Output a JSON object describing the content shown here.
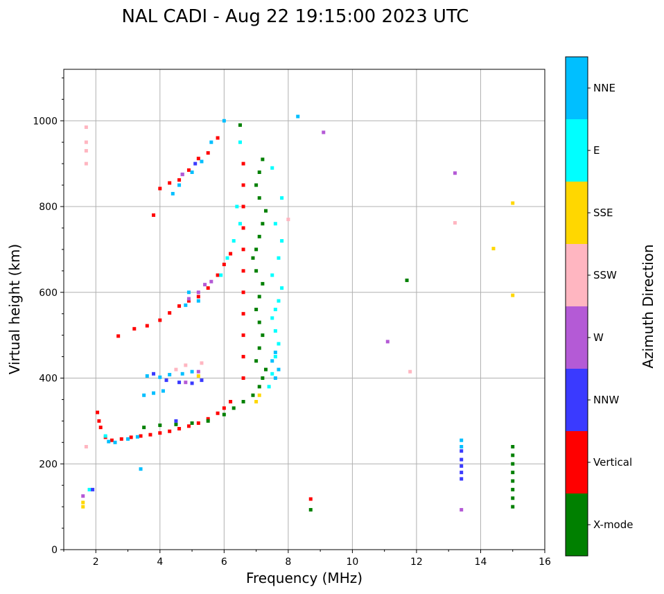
{
  "chart_data": {
    "type": "scatter",
    "title": "NAL CADI - Aug 22 19:15:00 2023 UTC",
    "xlabel": "Frequency (MHz)",
    "ylabel": "Virtual height (km)",
    "xlim": [
      1,
      16
    ],
    "ylim": [
      0,
      1120
    ],
    "xticks": [
      2,
      4,
      6,
      8,
      10,
      12,
      14,
      16
    ],
    "yticks": [
      0,
      200,
      400,
      600,
      800,
      1000
    ],
    "grid": true,
    "colorbar": {
      "label": "Azimuth Direction",
      "categories": [
        {
          "name": "X-mode",
          "color": "#008000"
        },
        {
          "name": "Vertical",
          "color": "#ff0000"
        },
        {
          "name": "NNW",
          "color": "#3a3aff"
        },
        {
          "name": "W",
          "color": "#b45ad6"
        },
        {
          "name": "SSW",
          "color": "#ffb6c1"
        },
        {
          "name": "SSE",
          "color": "#ffd700"
        },
        {
          "name": "E",
          "color": "#00ffff"
        },
        {
          "name": "NNE",
          "color": "#00bfff"
        }
      ]
    },
    "series": [
      {
        "name": "Vertical",
        "points": [
          [
            2.05,
            320
          ],
          [
            2.1,
            300
          ],
          [
            2.15,
            285
          ],
          [
            2.3,
            262
          ],
          [
            2.5,
            255
          ],
          [
            2.8,
            258
          ],
          [
            3.1,
            262
          ],
          [
            3.4,
            265
          ],
          [
            3.7,
            268
          ],
          [
            4.0,
            272
          ],
          [
            4.3,
            276
          ],
          [
            4.6,
            282
          ],
          [
            4.9,
            288
          ],
          [
            5.2,
            295
          ],
          [
            5.5,
            305
          ],
          [
            5.8,
            318
          ],
          [
            6.0,
            330
          ],
          [
            6.2,
            345
          ],
          [
            2.7,
            498
          ],
          [
            3.2,
            515
          ],
          [
            3.6,
            522
          ],
          [
            4.0,
            535
          ],
          [
            4.3,
            552
          ],
          [
            4.6,
            568
          ],
          [
            4.9,
            580
          ],
          [
            5.2,
            590
          ],
          [
            5.5,
            610
          ],
          [
            5.8,
            640
          ],
          [
            6.0,
            665
          ],
          [
            6.2,
            690
          ],
          [
            3.8,
            780
          ],
          [
            4.0,
            842
          ],
          [
            4.3,
            855
          ],
          [
            4.6,
            862
          ],
          [
            4.9,
            885
          ],
          [
            5.2,
            912
          ],
          [
            5.5,
            925
          ],
          [
            5.8,
            960
          ],
          [
            6.6,
            400
          ],
          [
            6.6,
            450
          ],
          [
            6.6,
            500
          ],
          [
            6.6,
            550
          ],
          [
            6.6,
            600
          ],
          [
            6.6,
            650
          ],
          [
            6.6,
            700
          ],
          [
            6.6,
            750
          ],
          [
            6.6,
            800
          ],
          [
            6.6,
            850
          ],
          [
            6.6,
            900
          ],
          [
            8.7,
            118
          ]
        ]
      },
      {
        "name": "X-mode",
        "points": [
          [
            3.5,
            285
          ],
          [
            4.0,
            290
          ],
          [
            4.5,
            292
          ],
          [
            5.0,
            295
          ],
          [
            5.5,
            300
          ],
          [
            6.0,
            315
          ],
          [
            6.3,
            330
          ],
          [
            6.6,
            345
          ],
          [
            6.9,
            360
          ],
          [
            7.1,
            380
          ],
          [
            7.2,
            400
          ],
          [
            7.3,
            420
          ],
          [
            7.0,
            440
          ],
          [
            7.1,
            470
          ],
          [
            7.2,
            500
          ],
          [
            7.1,
            530
          ],
          [
            7.0,
            560
          ],
          [
            7.1,
            590
          ],
          [
            7.2,
            620
          ],
          [
            7.0,
            650
          ],
          [
            6.9,
            680
          ],
          [
            7.0,
            700
          ],
          [
            7.1,
            730
          ],
          [
            7.2,
            760
          ],
          [
            7.3,
            790
          ],
          [
            7.1,
            820
          ],
          [
            7.0,
            850
          ],
          [
            7.1,
            880
          ],
          [
            7.2,
            910
          ],
          [
            6.5,
            990
          ],
          [
            8.7,
            93
          ],
          [
            11.7,
            628
          ],
          [
            15.0,
            240
          ],
          [
            15.0,
            220
          ],
          [
            15.0,
            200
          ],
          [
            15.0,
            180
          ],
          [
            15.0,
            160
          ],
          [
            15.0,
            140
          ],
          [
            15.0,
            120
          ],
          [
            15.0,
            100
          ]
        ]
      },
      {
        "name": "NNE",
        "points": [
          [
            2.4,
            252
          ],
          [
            2.6,
            250
          ],
          [
            3.0,
            258
          ],
          [
            3.3,
            263
          ],
          [
            3.5,
            360
          ],
          [
            3.8,
            365
          ],
          [
            4.1,
            370
          ],
          [
            3.6,
            405
          ],
          [
            4.0,
            402
          ],
          [
            4.3,
            408
          ],
          [
            4.7,
            410
          ],
          [
            5.0,
            415
          ],
          [
            4.8,
            570
          ],
          [
            5.2,
            580
          ],
          [
            4.9,
            600
          ],
          [
            4.4,
            830
          ],
          [
            4.6,
            850
          ],
          [
            5.0,
            880
          ],
          [
            5.3,
            905
          ],
          [
            5.6,
            950
          ],
          [
            6.0,
            1000
          ],
          [
            7.6,
            400
          ],
          [
            7.7,
            420
          ],
          [
            7.5,
            440
          ],
          [
            7.6,
            460
          ],
          [
            8.3,
            1010
          ],
          [
            3.4,
            188
          ],
          [
            13.4,
            255
          ],
          [
            13.4,
            240
          ]
        ]
      },
      {
        "name": "E",
        "points": [
          [
            7.4,
            380
          ],
          [
            7.5,
            410
          ],
          [
            7.6,
            450
          ],
          [
            7.7,
            480
          ],
          [
            7.6,
            510
          ],
          [
            7.5,
            540
          ],
          [
            7.6,
            560
          ],
          [
            7.7,
            580
          ],
          [
            7.8,
            610
          ],
          [
            7.5,
            640
          ],
          [
            7.7,
            680
          ],
          [
            7.8,
            720
          ],
          [
            7.6,
            760
          ],
          [
            7.8,
            820
          ],
          [
            7.5,
            890
          ],
          [
            6.4,
            800
          ],
          [
            6.5,
            760
          ],
          [
            6.3,
            720
          ],
          [
            6.1,
            680
          ],
          [
            5.9,
            640
          ],
          [
            6.5,
            950
          ],
          [
            2.3,
            265
          ],
          [
            1.8,
            140
          ]
        ]
      },
      {
        "name": "NNW",
        "points": [
          [
            3.8,
            410
          ],
          [
            4.2,
            395
          ],
          [
            4.6,
            390
          ],
          [
            5.0,
            388
          ],
          [
            5.3,
            395
          ],
          [
            4.7,
            875
          ],
          [
            5.1,
            900
          ],
          [
            13.4,
            230
          ],
          [
            13.4,
            210
          ],
          [
            13.4,
            195
          ],
          [
            13.4,
            180
          ],
          [
            13.4,
            165
          ],
          [
            1.9,
            140
          ],
          [
            4.5,
            300
          ]
        ]
      },
      {
        "name": "W",
        "points": [
          [
            4.9,
            585
          ],
          [
            5.2,
            600
          ],
          [
            5.4,
            618
          ],
          [
            5.6,
            625
          ],
          [
            4.7,
            875
          ],
          [
            1.6,
            125
          ],
          [
            9.1,
            973
          ],
          [
            11.1,
            485
          ],
          [
            13.2,
            878
          ],
          [
            13.4,
            93
          ],
          [
            4.8,
            390
          ],
          [
            5.2,
            415
          ]
        ]
      },
      {
        "name": "SSW",
        "points": [
          [
            4.5,
            420
          ],
          [
            4.8,
            430
          ],
          [
            5.3,
            435
          ],
          [
            1.7,
            985
          ],
          [
            1.7,
            950
          ],
          [
            1.7,
            930
          ],
          [
            1.7,
            900
          ],
          [
            8.0,
            770
          ],
          [
            11.8,
            415
          ],
          [
            13.2,
            762
          ],
          [
            1.7,
            240
          ]
        ]
      },
      {
        "name": "SSE",
        "points": [
          [
            7.0,
            345
          ],
          [
            7.1,
            360
          ],
          [
            1.6,
            100
          ],
          [
            1.6,
            110
          ],
          [
            14.4,
            702
          ],
          [
            15.0,
            808
          ],
          [
            15.0,
            593
          ],
          [
            5.2,
            405
          ]
        ]
      }
    ]
  }
}
